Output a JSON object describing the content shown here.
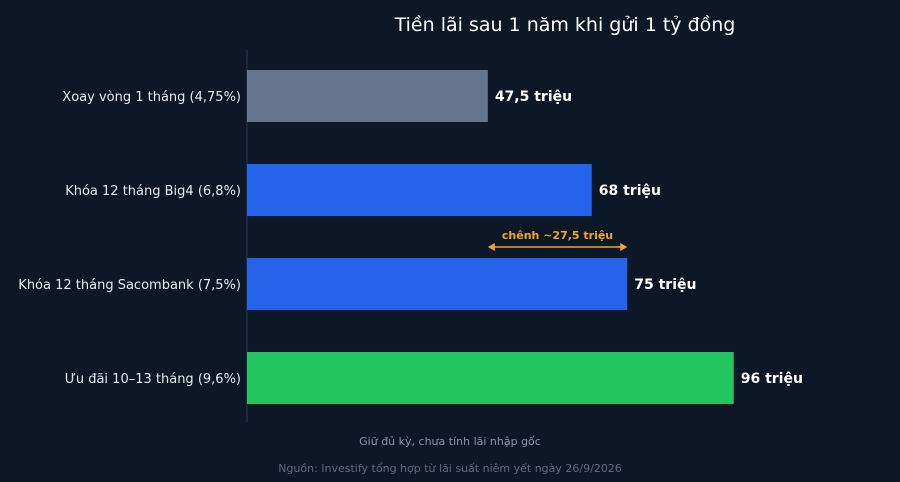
{
  "chart_data": {
    "type": "bar",
    "orientation": "horizontal",
    "title": "Tiền lãi sau 1 năm khi gửi 1 tỷ đồng",
    "categories": [
      "Xoay vòng 1 tháng (4,75%)",
      "Khóa 12 tháng Big4 (6,8%)",
      "Khóa 12 tháng Sacombank (7,5%)",
      "Ưu đãi 10–13 tháng (9,6%)"
    ],
    "values": [
      47.5,
      68,
      75,
      96
    ],
    "value_labels": [
      "47,5 triệu",
      "68 triệu",
      "75 triệu",
      "96 triệu"
    ],
    "colors": [
      "#64748b",
      "#2563eb",
      "#2563eb",
      "#22c55e"
    ],
    "xlim": [
      0,
      100
    ],
    "grid": false,
    "annotation": {
      "text": "chênh ~27,5 triệu",
      "from": 47.5,
      "to": 75,
      "color": "#f5a524"
    }
  },
  "notes": {
    "subtitle": "Giữ đủ kỳ, chưa tính lãi nhập gốc",
    "source": "Nguồn: Investify tổng hợp từ lãi suất niêm yết ngày 26/9/2026"
  }
}
